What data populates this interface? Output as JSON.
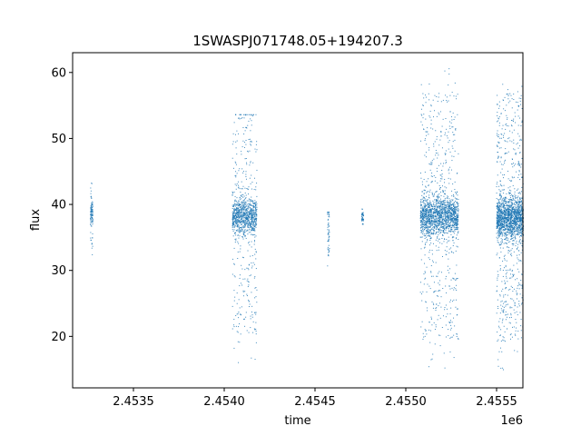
{
  "chart_data": {
    "type": "scatter",
    "title": "1SWASPJ071748.05+194207.3",
    "xlabel": "time",
    "ylabel": "flux",
    "x_offset_label": "1e6",
    "xlim": [
      2453165,
      2455645
    ],
    "ylim": [
      12.2,
      63.0
    ],
    "xticks": [
      2453500,
      2454000,
      2454500,
      2455000,
      2455500
    ],
    "xtick_labels": [
      "2.4535",
      "2.4540",
      "2.4545",
      "2.4550",
      "2.4555"
    ],
    "yticks": [
      20,
      30,
      40,
      50,
      60
    ],
    "ytick_labels": [
      "20",
      "30",
      "40",
      "50",
      "60"
    ],
    "grid": false,
    "marker_color": "#1f77b4",
    "clusters": [
      {
        "x_range": [
          2453263,
          2453277
        ],
        "center": 38.6,
        "spread": 1.0,
        "low": 31.5,
        "high": 43.3,
        "n": 110
      },
      {
        "x_range": [
          2454045,
          2454180
        ],
        "center": 38.3,
        "spread": 1.4,
        "low": 16.0,
        "high": 53.6,
        "n": 1100
      },
      {
        "x_range": [
          2454568,
          2454580
        ],
        "center": 36.0,
        "spread": 2.5,
        "low": 28.6,
        "high": 38.8,
        "n": 55
      },
      {
        "x_range": [
          2454757,
          2454767
        ],
        "center": 38.2,
        "spread": 0.7,
        "low": 37.0,
        "high": 39.3,
        "n": 45
      },
      {
        "x_range": [
          2455080,
          2455290
        ],
        "center": 38.2,
        "spread": 1.5,
        "low": 14.9,
        "high": 60.8,
        "n": 1900
      },
      {
        "x_range": [
          2455500,
          2455648
        ],
        "center": 38.0,
        "spread": 1.6,
        "low": 14.5,
        "high": 59.8,
        "n": 1900
      }
    ]
  }
}
